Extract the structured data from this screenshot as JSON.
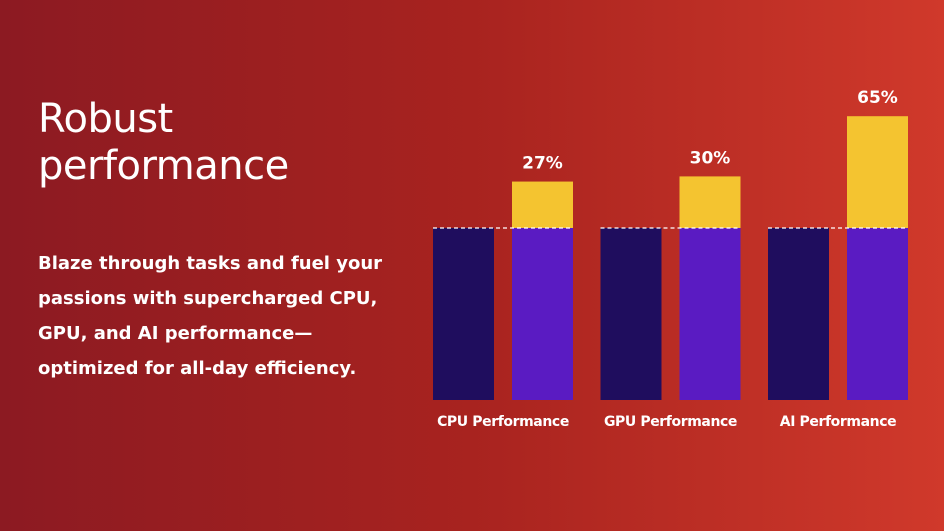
{
  "heading": {
    "lines": [
      "Robust",
      "performance"
    ]
  },
  "body": {
    "lines": [
      "Blaze through tasks and fuel your",
      "passions with supercharged CPU,",
      "GPU, and AI performance—",
      "optimized for all-day efficiency."
    ]
  },
  "chart_data": {
    "type": "bar",
    "categories": [
      "CPU Performance",
      "GPU Performance",
      "AI Performance"
    ],
    "series": [
      {
        "color": "#1f0d5e",
        "values": [
          100,
          100,
          100
        ]
      },
      {
        "color": "#5a1bc2",
        "values": [
          100,
          100,
          100
        ]
      },
      {
        "color": "#f4c430",
        "values": [
          27,
          30,
          65
        ],
        "value_labels": [
          "27%",
          "30%",
          "65%"
        ]
      }
    ],
    "ylim": [
      0,
      170
    ]
  }
}
